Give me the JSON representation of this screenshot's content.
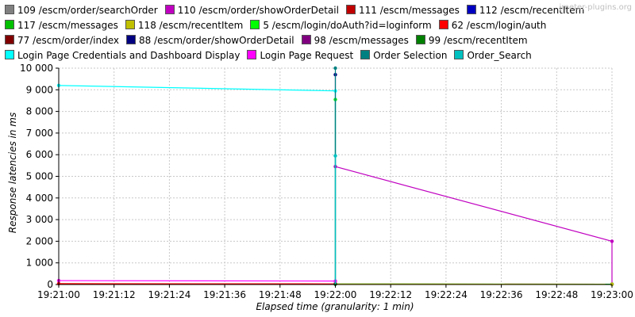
{
  "watermark": "jmeter-plugins.org",
  "chart_data": {
    "type": "line",
    "xlabel": "Elapsed time (granularity: 1 min)",
    "ylabel": "Response latencies in ms",
    "xlim": [
      "19:21:00",
      "19:23:00"
    ],
    "ylim": [
      0,
      10000
    ],
    "x_ticks": [
      "19:21:00",
      "19:21:12",
      "19:21:24",
      "19:21:36",
      "19:21:48",
      "19:22:00",
      "19:22:12",
      "19:22:24",
      "19:22:36",
      "19:22:48",
      "19:23:00"
    ],
    "y_ticks": [
      "0",
      "1 000",
      "2 000",
      "3 000",
      "4 000",
      "5 000",
      "6 000",
      "7 000",
      "8 000",
      "9 000",
      "10 000"
    ],
    "grid": true,
    "legend_position": "top",
    "series": [
      {
        "name": "109 /escm/order/searchOrder",
        "color": "#808080",
        "x": [
          "19:22:00"
        ],
        "y": [
          20
        ]
      },
      {
        "name": "110 /escm/order/showOrderDetail",
        "color": "#c000c0",
        "x": [
          "19:22:00",
          "19:23:00"
        ],
        "y": [
          5450,
          2000
        ]
      },
      {
        "name": "111 /escm/messages",
        "color": "#c00000",
        "x": [
          "19:22:00",
          "19:23:00"
        ],
        "y": [
          20,
          15
        ]
      },
      {
        "name": "112 /escm/recentItem",
        "color": "#0000c0",
        "x": [
          "19:22:00",
          "19:23:00"
        ],
        "y": [
          15,
          10
        ]
      },
      {
        "name": "117 /escm/messages",
        "color": "#00c000",
        "x": [
          "19:22:00",
          "19:23:00"
        ],
        "y": [
          25,
          15
        ]
      },
      {
        "name": "118 /escm/recentItem",
        "color": "#c0c000",
        "x": [
          "19:22:00",
          "19:23:00"
        ],
        "y": [
          20,
          10
        ]
      },
      {
        "name": "5 /escm/login/doAuth?id=loginform",
        "color": "#00ff00",
        "x": [
          "19:22:00"
        ],
        "y": [
          8550
        ]
      },
      {
        "name": "62 /escm/login/auth",
        "color": "#ff0000",
        "x": [
          "19:21:00",
          "19:22:00"
        ],
        "y": [
          40,
          30
        ]
      },
      {
        "name": "77 /escm/order/index",
        "color": "#800000",
        "x": [
          "19:22:00"
        ],
        "y": [
          25
        ]
      },
      {
        "name": "88 /escm/order/showOrderDetail",
        "color": "#000080",
        "x": [
          "19:22:00"
        ],
        "y": [
          9700
        ]
      },
      {
        "name": "98 /escm/messages",
        "color": "#800080",
        "x": [
          "19:22:00"
        ],
        "y": [
          20
        ]
      },
      {
        "name": "99 /escm/recentItem",
        "color": "#008000",
        "x": [
          "19:22:00"
        ],
        "y": [
          15
        ]
      },
      {
        "name": "Login Page Credentials and Dashboard Display",
        "color": "#00ffff",
        "x": [
          "19:21:00",
          "19:22:00"
        ],
        "y": [
          9200,
          8950
        ]
      },
      {
        "name": "Login Page Request",
        "color": "#ff00ff",
        "x": [
          "19:21:00",
          "19:22:00"
        ],
        "y": [
          180,
          160
        ]
      },
      {
        "name": "Order Selection",
        "color": "#008080",
        "x": [
          "19:22:00"
        ],
        "y": [
          10000
        ]
      },
      {
        "name": "Order_Search",
        "color": "#00c0c0",
        "x": [
          "19:22:00"
        ],
        "y": [
          5950
        ]
      }
    ]
  }
}
